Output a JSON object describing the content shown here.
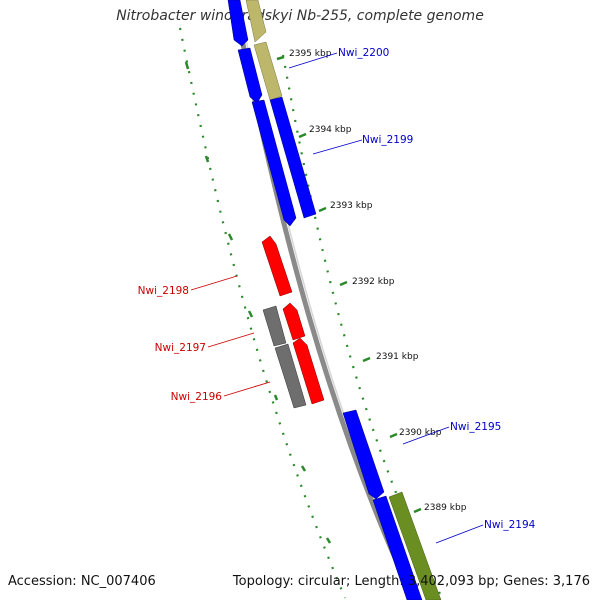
{
  "title": "Nitrobacter winogradskyi Nb-255, complete genome",
  "accession_text": "Accession: NC_007406",
  "topology_text": "Topology: circular; Length: 3,402,093 bp; Genes: 3,176",
  "tick_labels": [
    "2395 kbp",
    "2394 kbp",
    "2393 kbp",
    "2392 kbp",
    "2391 kbp",
    "2390 kbp",
    "2389 kbp"
  ],
  "genes_forward": [
    {
      "label": "Nwi_2200",
      "color": "#0000cc"
    },
    {
      "label": "Nwi_2199",
      "color": "#0000cc"
    },
    {
      "label": "Nwi_2195",
      "color": "#0000cc"
    },
    {
      "label": "Nwi_2194",
      "color": "#0000cc"
    }
  ],
  "genes_reverse": [
    {
      "label": "Nwi_2198",
      "color": "#cc0000"
    },
    {
      "label": "Nwi_2197",
      "color": "#cc0000"
    },
    {
      "label": "Nwi_2196",
      "color": "#cc0000"
    }
  ],
  "colors": {
    "backbone": "#8a8a8a",
    "cds_forward": "#0000ff",
    "cds_reverse": "#ff0000",
    "rna_or_other": "#6e6e6e",
    "khaki": "#bdb76b",
    "olive": "#6b8e23",
    "tick_dots": "#2a8a2a"
  }
}
